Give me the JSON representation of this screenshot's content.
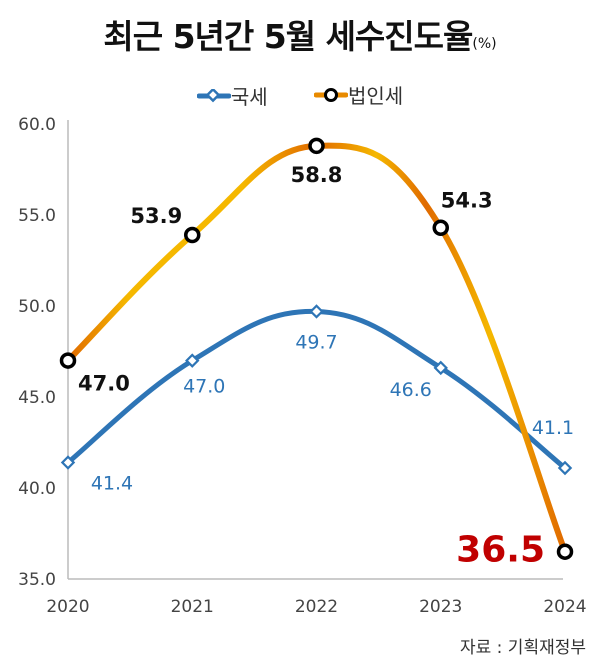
{
  "chart_data": {
    "type": "line",
    "title": "최근 5년간 5월 세수진도율",
    "title_unit": "(%)",
    "categories": [
      "2020",
      "2021",
      "2022",
      "2023",
      "2024"
    ],
    "ylim": [
      35.0,
      60.0
    ],
    "yticks": [
      "35.0",
      "40.0",
      "45.0",
      "50.0",
      "55.0",
      "60.0"
    ],
    "grid": false,
    "legend_position": "top-center",
    "series": [
      {
        "name": "국세",
        "values": [
          41.4,
          47.0,
          49.7,
          46.6,
          41.1
        ],
        "labels": [
          "41.4",
          "47.0",
          "49.7",
          "46.6",
          "41.1"
        ],
        "color": "#2e75b6"
      },
      {
        "name": "법인세",
        "values": [
          47.0,
          53.9,
          58.8,
          54.3,
          36.5
        ],
        "labels": [
          "47.0",
          "53.9",
          "58.8",
          "54.3",
          "36.5"
        ],
        "color": "#f5b800",
        "color2": "#e06a00",
        "highlight_color": "#c00000"
      }
    ],
    "source": "자료 : 기획재정부"
  }
}
